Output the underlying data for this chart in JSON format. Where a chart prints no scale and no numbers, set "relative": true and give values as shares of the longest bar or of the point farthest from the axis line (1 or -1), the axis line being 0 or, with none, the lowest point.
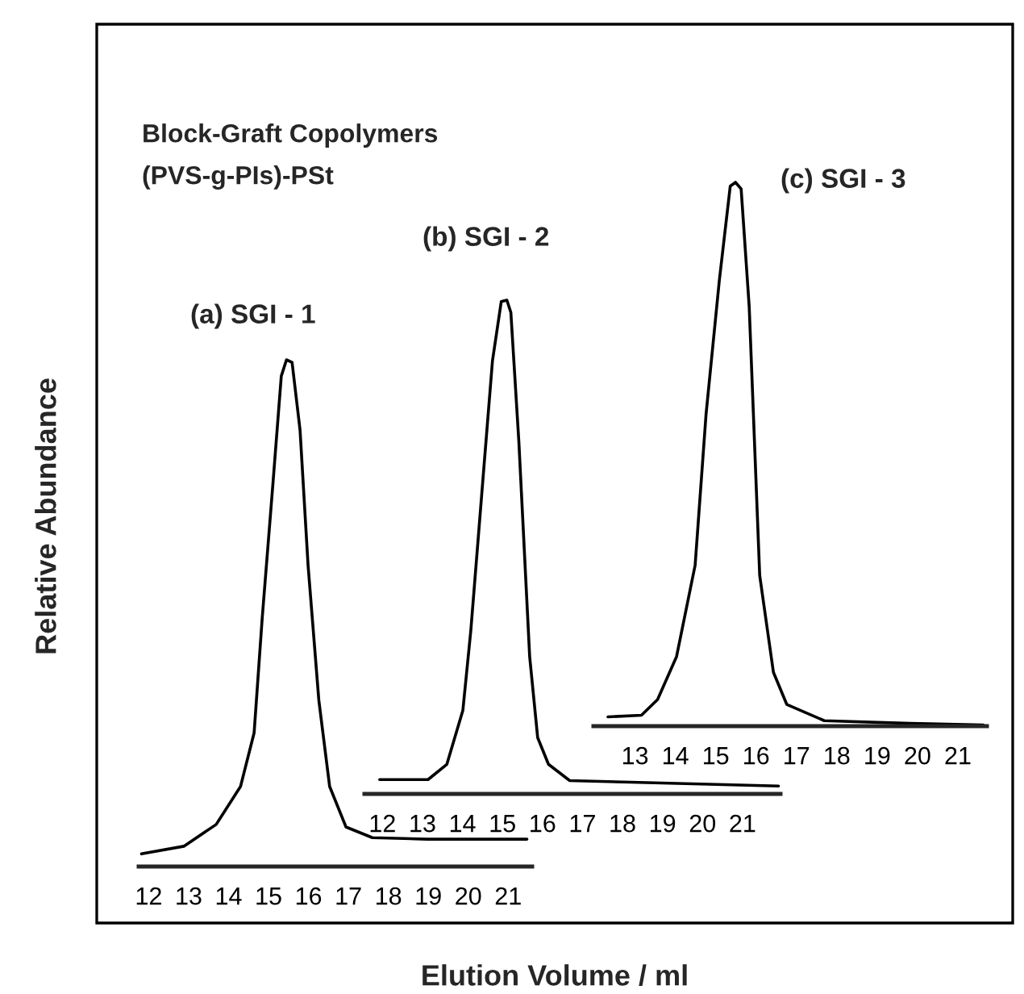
{
  "chart_data": [
    {
      "type": "line",
      "title": "(a) SGI - 1",
      "annotations": [
        "Block-Graft Copolymers",
        "(PVS-g-PIs)-PSt"
      ],
      "xlabel": "Elution Volume / ml",
      "ylabel": "Relative Abundance",
      "relative": true,
      "xlim": [
        11.75,
        21.6
      ],
      "xticks": [
        12,
        13,
        14,
        15,
        16,
        17,
        18,
        19,
        20,
        21
      ],
      "grid": false,
      "legend": false,
      "marker": "none",
      "line_style": "solid",
      "series": [
        {
          "color": "#000000",
          "x": [
            11.82,
            12.88,
            13.69,
            14.3,
            14.64,
            14.84,
            15.11,
            15.32,
            15.45,
            15.59,
            15.79,
            15.99,
            16.26,
            16.53,
            16.94,
            17.6,
            18.97,
            21.47
          ],
          "values": [
            0.025,
            0.04,
            0.083,
            0.158,
            0.264,
            0.488,
            0.755,
            0.968,
            1.0,
            0.995,
            0.861,
            0.595,
            0.328,
            0.158,
            0.078,
            0.057,
            0.054,
            0.054
          ]
        }
      ]
    },
    {
      "type": "line",
      "title": "(b) SGI - 2",
      "relative": true,
      "xlim": [
        11.55,
        21.95
      ],
      "xticks": [
        12,
        13,
        14,
        15,
        16,
        17,
        18,
        19,
        20,
        21
      ],
      "grid": false,
      "legend": false,
      "marker": "none",
      "line_style": "solid",
      "series": [
        {
          "color": "#000000",
          "x": [
            11.93,
            13.14,
            13.61,
            14.01,
            14.21,
            14.48,
            14.75,
            14.97,
            15.11,
            15.21,
            15.41,
            15.68,
            15.88,
            16.15,
            16.68,
            18.02,
            21.9
          ],
          "values": [
            0.029,
            0.029,
            0.06,
            0.169,
            0.332,
            0.605,
            0.877,
            0.997,
            1.0,
            0.975,
            0.713,
            0.278,
            0.114,
            0.06,
            0.027,
            0.024,
            0.016
          ]
        }
      ]
    },
    {
      "type": "line",
      "title": "(c) SGI - 3",
      "relative": true,
      "xlim": [
        11.97,
        21.72
      ],
      "xticks": [
        13,
        14,
        15,
        16,
        17,
        18,
        19,
        20,
        21
      ],
      "grid": false,
      "legend": false,
      "marker": "none",
      "line_style": "solid",
      "series": [
        {
          "color": "#000000",
          "x": [
            12.33,
            13.16,
            13.56,
            14.03,
            14.49,
            14.76,
            15.09,
            15.36,
            15.49,
            15.63,
            15.83,
            16.09,
            16.43,
            16.76,
            17.69,
            19.83,
            21.63
          ],
          "values": [
            0.017,
            0.02,
            0.049,
            0.128,
            0.296,
            0.573,
            0.82,
            0.993,
            1.0,
            0.988,
            0.771,
            0.277,
            0.099,
            0.04,
            0.01,
            0.005,
            0.002
          ]
        }
      ]
    }
  ]
}
